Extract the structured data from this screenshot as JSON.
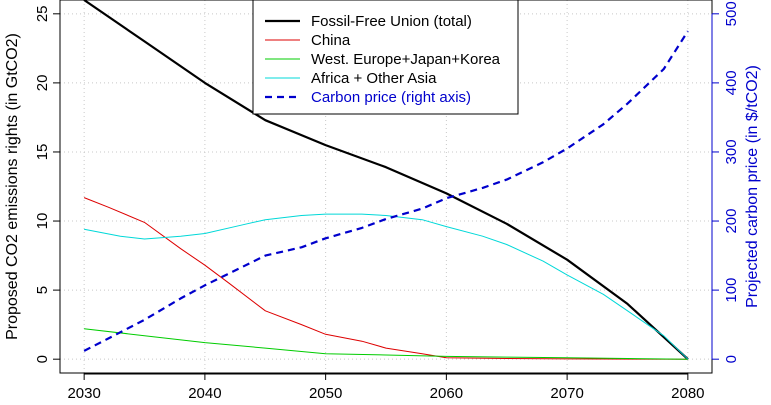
{
  "chart_data": {
    "type": "line",
    "xlim": [
      2028,
      2082
    ],
    "x_ticks": [
      2030,
      2040,
      2050,
      2060,
      2070,
      2080
    ],
    "ylabel": "Proposed CO2 emissions rights (in GtCO2)",
    "ylim": [
      -1,
      26
    ],
    "y_ticks": [
      0,
      5,
      10,
      15,
      20,
      25
    ],
    "y2label": "Projected carbon price (in $/tCO2)",
    "y2lim": [
      -20,
      520
    ],
    "y2_ticks": [
      0,
      100,
      200,
      300,
      400,
      500
    ],
    "grid": true,
    "legend_position": "top-center",
    "series": [
      {
        "name": "Fossil-Free Union (total)",
        "axis": "left",
        "color": "#000000",
        "style": "solid",
        "width": 2.2,
        "x": [
          2030,
          2035,
          2040,
          2045,
          2050,
          2055,
          2060,
          2065,
          2070,
          2075,
          2080
        ],
        "values": [
          26.0,
          23.0,
          20.0,
          17.3,
          15.5,
          13.9,
          12.0,
          9.8,
          7.2,
          4.0,
          0.0
        ]
      },
      {
        "name": "China",
        "axis": "left",
        "color": "#dd0000",
        "style": "solid",
        "width": 1,
        "x": [
          2030,
          2032,
          2035,
          2038,
          2040,
          2042,
          2045,
          2048,
          2050,
          2053,
          2055,
          2058,
          2060,
          2065,
          2070,
          2080
        ],
        "values": [
          11.7,
          11.0,
          9.9,
          8.0,
          6.8,
          5.5,
          3.5,
          2.5,
          1.8,
          1.3,
          0.8,
          0.4,
          0.1,
          0.05,
          0.02,
          0.0
        ]
      },
      {
        "name": "West. Europe+Japan+Korea",
        "axis": "left",
        "color": "#00cc00",
        "style": "solid",
        "width": 1,
        "x": [
          2030,
          2035,
          2040,
          2045,
          2050,
          2055,
          2060,
          2065,
          2070,
          2075,
          2080
        ],
        "values": [
          2.2,
          1.7,
          1.2,
          0.8,
          0.4,
          0.3,
          0.2,
          0.15,
          0.1,
          0.05,
          0.0
        ]
      },
      {
        "name": "Africa + Other Asia",
        "axis": "left",
        "color": "#00d8d8",
        "style": "solid",
        "width": 1,
        "x": [
          2030,
          2033,
          2035,
          2038,
          2040,
          2043,
          2045,
          2048,
          2050,
          2053,
          2055,
          2058,
          2060,
          2063,
          2065,
          2068,
          2070,
          2073,
          2075,
          2078,
          2080
        ],
        "values": [
          9.4,
          8.9,
          8.7,
          8.9,
          9.1,
          9.7,
          10.1,
          10.4,
          10.5,
          10.5,
          10.4,
          10.1,
          9.6,
          8.9,
          8.3,
          7.1,
          6.1,
          4.7,
          3.5,
          1.7,
          0.0
        ]
      },
      {
        "name": "Carbon price (right axis)",
        "axis": "right",
        "color": "#0000cc",
        "style": "dashed",
        "width": 2.2,
        "x": [
          2030,
          2032,
          2035,
          2038,
          2040,
          2042,
          2045,
          2048,
          2050,
          2053,
          2055,
          2058,
          2060,
          2063,
          2065,
          2068,
          2070,
          2073,
          2075,
          2078,
          2080
        ],
        "values": [
          12,
          30,
          57,
          88,
          107,
          124,
          150,
          162,
          175,
          190,
          203,
          218,
          233,
          248,
          260,
          285,
          305,
          340,
          370,
          420,
          475
        ]
      }
    ]
  }
}
